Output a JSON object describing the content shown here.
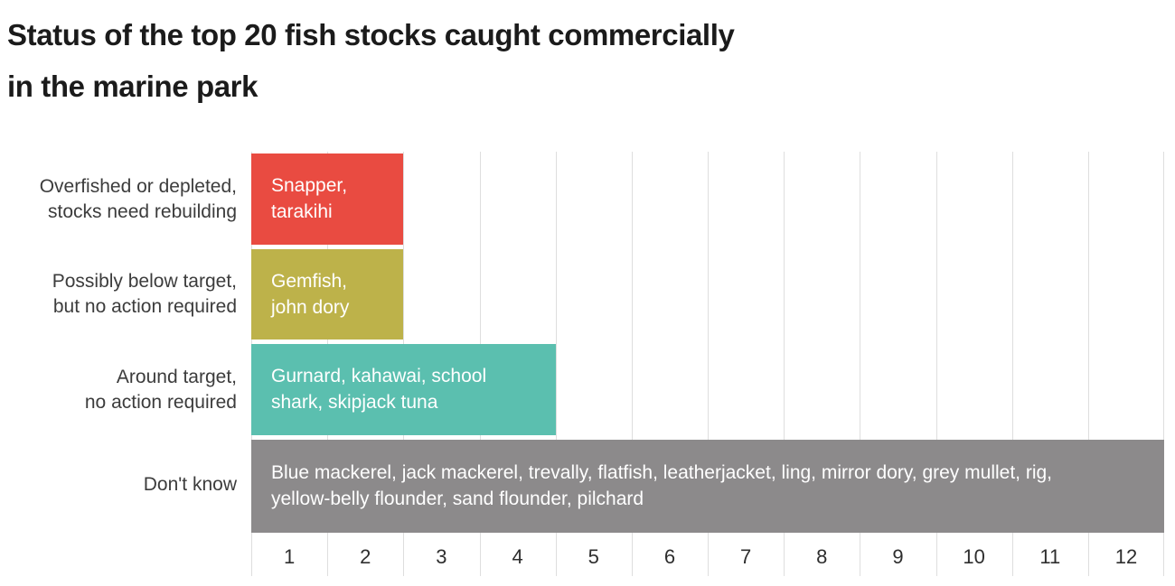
{
  "chart_data": {
    "type": "bar",
    "orientation": "horizontal",
    "title": "Status of the top 20 fish stocks caught commercially in the marine park",
    "categories": [
      "Overfished or depleted, stocks need rebuilding",
      "Possibly below target, but no action required",
      "Around target, no action required",
      "Don't know"
    ],
    "values": [
      2,
      2,
      4,
      12
    ],
    "bar_labels": [
      "Snapper, tarakihi",
      "Gemfish, john dory",
      "Gurnard, kahawai, school shark, skipjack tuna",
      "Blue mackerel, jack mackerel, trevally, flatfish, leatherjacket, ling, mirror dory, grey mullet, rig, yellow-belly flounder, sand flounder, pilchard"
    ],
    "colors": [
      "#E94B41",
      "#BDB24A",
      "#5BBFAF",
      "#8C8A8B"
    ],
    "x_ticks": [
      "1",
      "2",
      "3",
      "4",
      "5",
      "6",
      "7",
      "8",
      "9",
      "10",
      "11",
      "12"
    ],
    "xlim": [
      0,
      12
    ],
    "xlabel": "",
    "ylabel": "",
    "grid": true,
    "gridline_color": "#dedede",
    "legend": false
  },
  "display": {
    "title_lines": [
      "Status of the top 20 fish stocks caught commercially",
      "in the marine park"
    ],
    "rows": [
      {
        "category_lines": [
          "Overfished or depleted,",
          "stocks need rebuilding"
        ],
        "bar_label_lines": [
          "Snapper,",
          "tarakihi"
        ]
      },
      {
        "category_lines": [
          "Possibly below target,",
          "but no action required"
        ],
        "bar_label_lines": [
          "Gemfish,",
          "john dory"
        ]
      },
      {
        "category_lines": [
          "Around target,",
          "no action required"
        ],
        "bar_label_lines": [
          "Gurnard, kahawai, school",
          "shark, skipjack tuna"
        ]
      },
      {
        "category_lines": [
          "Don't know"
        ],
        "bar_label_lines": [
          "Blue mackerel, jack mackerel, trevally, flatfish, leatherjacket, ling, mirror dory, grey mullet, rig,",
          "yellow-belly flounder, sand flounder, pilchard"
        ]
      }
    ]
  }
}
